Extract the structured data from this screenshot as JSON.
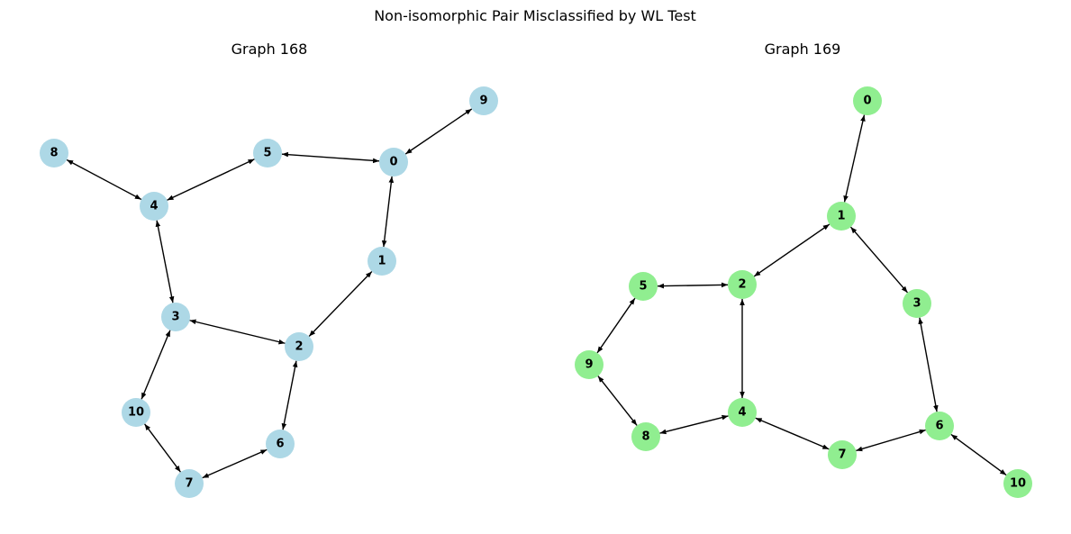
{
  "figure": {
    "title": "Non-isomorphic Pair Misclassified by WL Test"
  },
  "graphs": [
    {
      "title": "Graph 168",
      "node_color": "#add8e6",
      "nodes": [
        "0",
        "1",
        "2",
        "3",
        "4",
        "5",
        "6",
        "7",
        "8",
        "9",
        "10"
      ],
      "edges": [
        [
          "9",
          "0"
        ],
        [
          "0",
          "5"
        ],
        [
          "0",
          "1"
        ],
        [
          "5",
          "4"
        ],
        [
          "8",
          "4"
        ],
        [
          "4",
          "3"
        ],
        [
          "1",
          "2"
        ],
        [
          "3",
          "2"
        ],
        [
          "3",
          "10"
        ],
        [
          "2",
          "6"
        ],
        [
          "10",
          "7"
        ],
        [
          "6",
          "7"
        ]
      ]
    },
    {
      "title": "Graph 169",
      "node_color": "#90ee90",
      "nodes": [
        "0",
        "1",
        "2",
        "3",
        "4",
        "5",
        "6",
        "7",
        "8",
        "9",
        "10"
      ],
      "edges": [
        [
          "0",
          "1"
        ],
        [
          "1",
          "2"
        ],
        [
          "1",
          "3"
        ],
        [
          "5",
          "2"
        ],
        [
          "2",
          "4"
        ],
        [
          "5",
          "9"
        ],
        [
          "3",
          "6"
        ],
        [
          "9",
          "8"
        ],
        [
          "8",
          "4"
        ],
        [
          "4",
          "7"
        ],
        [
          "7",
          "6"
        ],
        [
          "6",
          "10"
        ]
      ]
    }
  ]
}
